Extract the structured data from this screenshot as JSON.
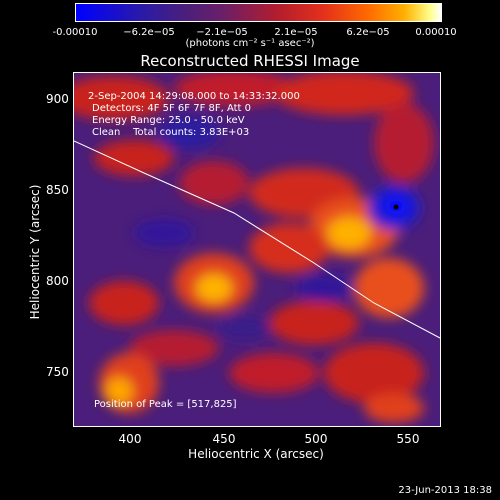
{
  "colorbar": {
    "ticks": [
      "-0.00010",
      "−6.2e−05",
      "−2.1e−05",
      "2.1e−05",
      "6.2e−05",
      "0.00010"
    ],
    "unit": "(photons cm⁻² s⁻¹ asec⁻²)"
  },
  "title": "Reconstructed RHESSI Image",
  "info": {
    "time": "2-Sep-2004 14:29:08.000 to 14:33:32.000",
    "detectors": "Detectors: 4F 5F 6F 7F 8F, Att 0",
    "energy": "Energy Range: 25.0 - 50.0 keV",
    "clean": "Clean    Total counts: 3.83E+03",
    "peak": "Position of Peak = [517,825]"
  },
  "axes": {
    "xlabel": "Heliocentric X (arcsec)",
    "ylabel": "Heliocentric Y (arcsec)",
    "xticks": [
      "400",
      "450",
      "500",
      "550"
    ],
    "yticks": [
      "900",
      "850",
      "800",
      "750"
    ]
  },
  "timestamp": "23-Jun-2013 18:38"
}
